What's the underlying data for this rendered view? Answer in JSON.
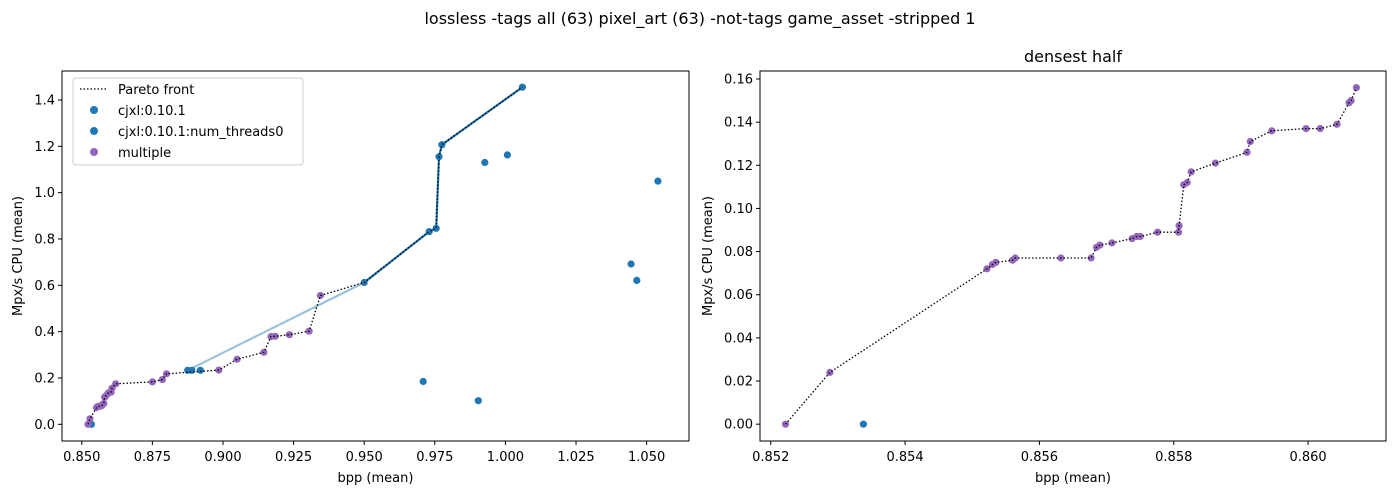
{
  "figure": {
    "suptitle": "lossless -tags all (63) pixel_art (63) -not-tags game_asset -stripped 1"
  },
  "colors": {
    "single": "#1f77b4",
    "multiple": "#9467bd",
    "pareto": "#000000",
    "connect": "#1f77b4"
  },
  "chart_data": [
    {
      "type": "scatter",
      "title": "",
      "xlabel": "bpp (mean)",
      "ylabel": "Mpx/s CPU (mean)",
      "xlim": [
        0.843,
        1.065
      ],
      "ylim": [
        -0.072,
        1.525
      ],
      "xticks": [
        "0.850",
        "0.875",
        "0.900",
        "0.925",
        "0.950",
        "0.975",
        "1.000",
        "1.025",
        "1.050"
      ],
      "yticks": [
        "0.0",
        "0.2",
        "0.4",
        "0.6",
        "0.8",
        "1.0",
        "1.2",
        "1.4"
      ],
      "legend": {
        "position": "top-left",
        "entries": [
          "Pareto front",
          "cjxl:0.10.1",
          "cjxl:0.10.1:num_threads0",
          "multiple"
        ]
      },
      "series": [
        {
          "name": "cjxl:0.10.1",
          "color": "single",
          "points": [
            [
              0.8534,
              0.0
            ],
            [
              0.9709,
              0.185
            ],
            [
              0.9904,
              0.102
            ],
            [
              0.9927,
              1.13
            ],
            [
              1.0007,
              1.163
            ],
            [
              1.0445,
              0.692
            ],
            [
              1.0465,
              0.621
            ],
            [
              1.054,
              1.05
            ]
          ]
        },
        {
          "name": "cjxl:0.10.1:num_threads0",
          "color": "single",
          "points": [
            [
              0.8875,
              0.233
            ],
            [
              0.889,
              0.233
            ],
            [
              0.892,
              0.233
            ],
            [
              0.95,
              0.612
            ],
            [
              0.973,
              0.832
            ],
            [
              0.9755,
              0.846
            ],
            [
              0.9765,
              1.155
            ],
            [
              0.9775,
              1.207
            ],
            [
              1.006,
              1.455
            ]
          ]
        },
        {
          "name": "multiple",
          "color": "multiple",
          "points": [
            [
              0.8522,
              0.0
            ],
            [
              0.8529,
              0.024
            ],
            [
              0.8552,
              0.072
            ],
            [
              0.8556,
              0.077
            ],
            [
              0.8565,
              0.078
            ],
            [
              0.8571,
              0.081
            ],
            [
              0.8574,
              0.087
            ],
            [
              0.8578,
              0.09
            ],
            [
              0.8581,
              0.117
            ],
            [
              0.8584,
              0.121
            ],
            [
              0.8591,
              0.131
            ],
            [
              0.8595,
              0.136
            ],
            [
              0.8604,
              0.139
            ],
            [
              0.8607,
              0.156
            ],
            [
              0.862,
              0.175
            ],
            [
              0.875,
              0.183
            ],
            [
              0.8785,
              0.193
            ],
            [
              0.88,
              0.218
            ],
            [
              0.8985,
              0.234
            ],
            [
              0.905,
              0.281
            ],
            [
              0.9145,
              0.311
            ],
            [
              0.917,
              0.379
            ],
            [
              0.9185,
              0.38
            ],
            [
              0.9235,
              0.387
            ],
            [
              0.9305,
              0.402
            ],
            [
              0.9345,
              0.556
            ]
          ]
        }
      ],
      "pareto_front": [
        [
          0.8522,
          0.0
        ],
        [
          0.8529,
          0.024
        ],
        [
          0.8552,
          0.072
        ],
        [
          0.8556,
          0.077
        ],
        [
          0.8565,
          0.078
        ],
        [
          0.8571,
          0.081
        ],
        [
          0.8574,
          0.087
        ],
        [
          0.8578,
          0.09
        ],
        [
          0.8581,
          0.117
        ],
        [
          0.8584,
          0.121
        ],
        [
          0.8591,
          0.131
        ],
        [
          0.8595,
          0.136
        ],
        [
          0.8604,
          0.139
        ],
        [
          0.8607,
          0.156
        ],
        [
          0.862,
          0.175
        ],
        [
          0.875,
          0.183
        ],
        [
          0.8785,
          0.193
        ],
        [
          0.88,
          0.218
        ],
        [
          0.8985,
          0.234
        ],
        [
          0.905,
          0.281
        ],
        [
          0.9145,
          0.311
        ],
        [
          0.917,
          0.379
        ],
        [
          0.9185,
          0.38
        ],
        [
          0.9235,
          0.387
        ],
        [
          0.9305,
          0.402
        ],
        [
          0.9345,
          0.556
        ],
        [
          0.95,
          0.612
        ],
        [
          0.973,
          0.832
        ],
        [
          0.9755,
          0.846
        ],
        [
          0.9765,
          1.155
        ],
        [
          0.9775,
          1.207
        ],
        [
          1.006,
          1.455
        ]
      ],
      "connect_lines": [
        {
          "color": "single",
          "opacity": 1.0,
          "points": [
            [
              0.95,
              0.612
            ],
            [
              0.973,
              0.832
            ],
            [
              0.9755,
              0.846
            ],
            [
              0.9765,
              1.155
            ],
            [
              0.9775,
              1.207
            ],
            [
              1.006,
              1.455
            ]
          ]
        },
        {
          "color": "single",
          "opacity": 0.45,
          "points": [
            [
              0.8875,
              0.233
            ],
            [
              0.95,
              0.612
            ]
          ]
        }
      ]
    },
    {
      "type": "scatter",
      "title": "densest half",
      "xlabel": "bpp (mean)",
      "ylabel": "Mpx/s CPU (mean)",
      "xlim": [
        0.85184,
        0.86116
      ],
      "ylim": [
        -0.0078,
        0.1637
      ],
      "xticks": [
        "0.852",
        "0.854",
        "0.856",
        "0.858",
        "0.860"
      ],
      "yticks": [
        "0.00",
        "0.02",
        "0.04",
        "0.06",
        "0.08",
        "0.10",
        "0.12",
        "0.14",
        "0.16"
      ],
      "series": [
        {
          "name": "cjxl:0.10.1",
          "color": "single",
          "points": [
            [
              0.85338,
              0.0
            ]
          ]
        },
        {
          "name": "multiple",
          "color": "multiple",
          "points": [
            [
              0.85222,
              0.0
            ],
            [
              0.85288,
              0.024
            ],
            [
              0.85522,
              0.072
            ],
            [
              0.8553,
              0.074
            ],
            [
              0.85535,
              0.075
            ],
            [
              0.8556,
              0.076
            ],
            [
              0.85564,
              0.077
            ],
            [
              0.85632,
              0.077
            ],
            [
              0.85677,
              0.077
            ],
            [
              0.85685,
              0.082
            ],
            [
              0.8569,
              0.083
            ],
            [
              0.85708,
              0.084
            ],
            [
              0.85738,
              0.086
            ],
            [
              0.85745,
              0.087
            ],
            [
              0.8575,
              0.087
            ],
            [
              0.85776,
              0.089
            ],
            [
              0.85807,
              0.089
            ],
            [
              0.85808,
              0.092
            ],
            [
              0.85815,
              0.111
            ],
            [
              0.8582,
              0.112
            ],
            [
              0.85826,
              0.117
            ],
            [
              0.85862,
              0.121
            ],
            [
              0.85909,
              0.126
            ],
            [
              0.85914,
              0.131
            ],
            [
              0.85946,
              0.136
            ],
            [
              0.85997,
              0.137
            ],
            [
              0.86018,
              0.137
            ],
            [
              0.86043,
              0.139
            ],
            [
              0.86061,
              0.149
            ],
            [
              0.86064,
              0.15
            ],
            [
              0.86072,
              0.156
            ]
          ]
        }
      ],
      "pareto_front": [
        [
          0.85222,
          0.0
        ],
        [
          0.85288,
          0.024
        ],
        [
          0.85522,
          0.072
        ],
        [
          0.8553,
          0.074
        ],
        [
          0.85535,
          0.075
        ],
        [
          0.8556,
          0.076
        ],
        [
          0.85564,
          0.077
        ],
        [
          0.85632,
          0.077
        ],
        [
          0.85677,
          0.077
        ],
        [
          0.85685,
          0.082
        ],
        [
          0.8569,
          0.083
        ],
        [
          0.85708,
          0.084
        ],
        [
          0.85738,
          0.086
        ],
        [
          0.85745,
          0.087
        ],
        [
          0.8575,
          0.087
        ],
        [
          0.85776,
          0.089
        ],
        [
          0.85807,
          0.089
        ],
        [
          0.85808,
          0.092
        ],
        [
          0.85815,
          0.111
        ],
        [
          0.8582,
          0.112
        ],
        [
          0.85826,
          0.117
        ],
        [
          0.85862,
          0.121
        ],
        [
          0.85909,
          0.126
        ],
        [
          0.85914,
          0.131
        ],
        [
          0.85946,
          0.136
        ],
        [
          0.85997,
          0.137
        ],
        [
          0.86018,
          0.137
        ],
        [
          0.86043,
          0.139
        ],
        [
          0.86061,
          0.149
        ],
        [
          0.86064,
          0.15
        ],
        [
          0.86072,
          0.156
        ]
      ],
      "connect_lines": []
    }
  ]
}
